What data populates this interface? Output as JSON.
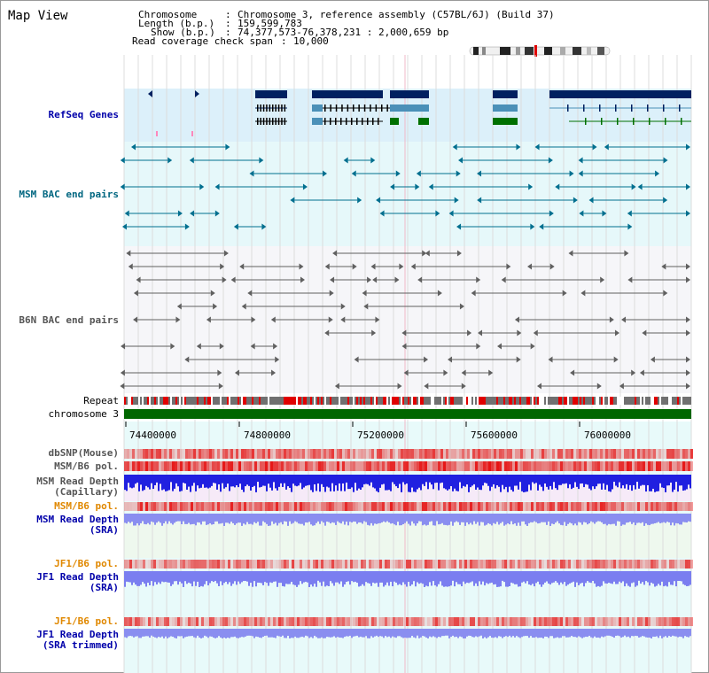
{
  "title": "Map View",
  "header": {
    "chromosome_label": "Chromosome",
    "chromosome_value": "Chromosome 3, reference assembly (C57BL/6J) (Build 37)",
    "length_label": "Length (b.p.)",
    "length_value": "159,599,783",
    "show_label": "Show (b.p.)",
    "show_value": "74,377,573-76,378,231 : 2,000,659 bp",
    "coverage_label": "Read coverage check span",
    "coverage_value": "10,000"
  },
  "tracks": {
    "refseq": "RefSeq Genes",
    "msm_bac": "MSM BAC end pairs",
    "b6n_bac": "B6N BAC end pairs",
    "repeat": "Repeat",
    "chromosome": "chromosome 3",
    "dbsnp": "dbSNP(Mouse)",
    "msm_b6_pol": "MSM/B6 pol.",
    "msm_depth_cap_1": "MSM Read Depth",
    "msm_depth_cap_2": "(Capillary)",
    "msm_b6_pol_2": "MSM/B6 pol.",
    "msm_depth_sra_1": "MSM Read Depth",
    "msm_depth_sra_2": "(SRA)",
    "jf1_b6_pol": "JF1/B6 pol.",
    "jf1_depth_sra_1": "JF1 Read Depth",
    "jf1_depth_sra_2": "(SRA)",
    "jf1_b6_pol_2": "JF1/B6 pol.",
    "jf1_depth_trim_1": "JF1 Read Depth",
    "jf1_depth_trim_2": "(SRA trimmed)"
  },
  "axis": {
    "ticks": [
      "74400000",
      "74800000",
      "75200000",
      "75600000",
      "76000000"
    ]
  },
  "colors": {
    "blue_label": "#0000aa",
    "teal_label": "#006680",
    "orange_label": "#e08800",
    "gene_navy": "#002060",
    "gene_green": "#007000",
    "gene_steel": "#4a90b8",
    "msm_teal": "#006f8f",
    "b6n_gray": "#606060",
    "snp_red": "#e00000"
  }
}
